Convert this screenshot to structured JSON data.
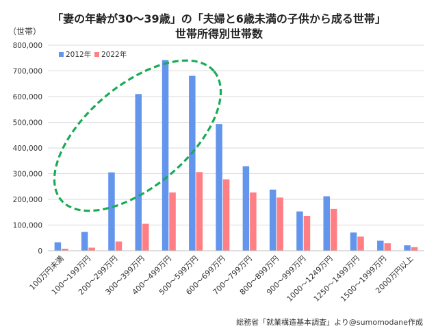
{
  "title_line1": "「妻の年齢が30～39歳」の「夫婦と6歳未満の子供から成る世帯」",
  "title_line2": "世帯所得別世帯数",
  "source": "総務省「就業構造基本調査」より@sumomodane作成",
  "colors": {
    "s2012": "#6495ED",
    "s2022": "#FF7F84",
    "ellipse": "#1aaa55",
    "grid": "#d9d9d9"
  },
  "chart_data": {
    "type": "bar",
    "ylabel": "（世帯）",
    "ylim": [
      0,
      800000
    ],
    "yticks": [
      0,
      100000,
      200000,
      300000,
      400000,
      500000,
      600000,
      700000,
      800000
    ],
    "ytick_labels": [
      "0",
      "100,000",
      "200,000",
      "300,000",
      "400,000",
      "500,000",
      "600,000",
      "700,000",
      "800,000"
    ],
    "grid": true,
    "legend": "top-left",
    "categories": [
      "100万円未満",
      "100～199万円",
      "200～299万円",
      "300～399万円",
      "400～499万円",
      "500～599万円",
      "600～699万円",
      "700～799万円",
      "800～899万円",
      "900～999万円",
      "1000～1249万円",
      "1250～1499万円",
      "1500～1999万円",
      "2000万円以上"
    ],
    "series": [
      {
        "name": "2012年",
        "values": [
          33000,
          73000,
          305000,
          610000,
          742000,
          681000,
          493000,
          329000,
          238000,
          153000,
          212000,
          71000,
          39000,
          21000
        ]
      },
      {
        "name": "2022年",
        "values": [
          8000,
          12000,
          36000,
          105000,
          227000,
          306000,
          278000,
          227000,
          207000,
          136000,
          163000,
          55000,
          29000,
          14000
        ]
      }
    ]
  }
}
